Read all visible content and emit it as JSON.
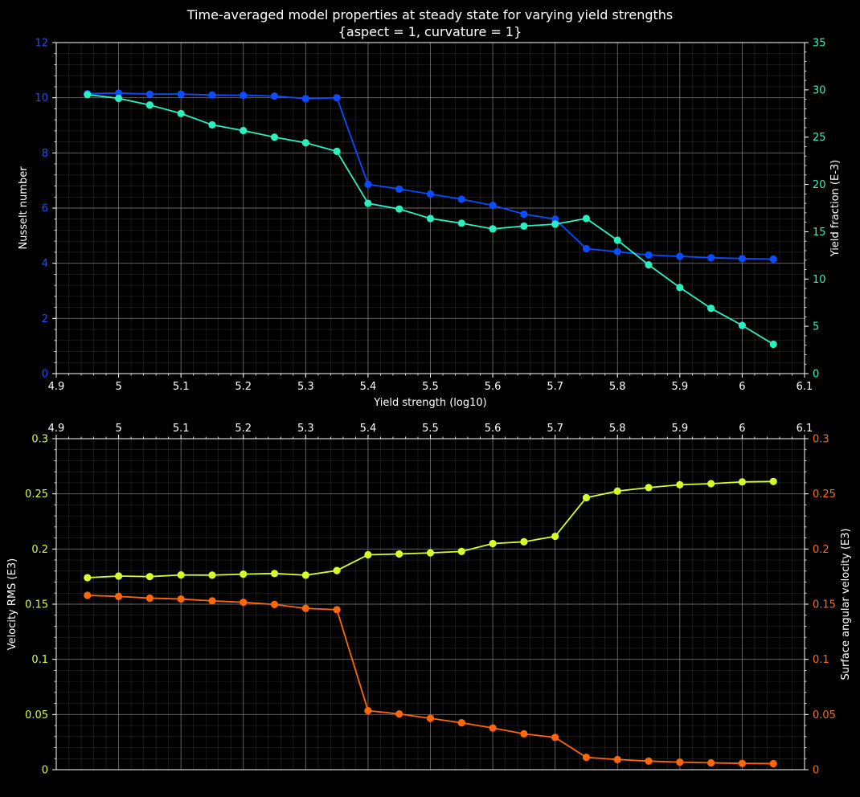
{
  "figure": {
    "title_line1": "Time-averaged model properties at steady state for varying yield strengths",
    "title_line2": "{aspect = 1, curvature = 1}",
    "background": "#000000",
    "grid_major_color": "#8c8c8c",
    "grid_minor_color": "#4a4a4a",
    "text_color": "#ffffff"
  },
  "chart_data": [
    {
      "type": "line",
      "panel": "top",
      "xlabel": "Yield strength (log10)",
      "xlim": [
        4.9,
        6.1
      ],
      "x_ticks": [
        "4.9",
        "5",
        "5.1",
        "5.2",
        "5.3",
        "5.4",
        "5.5",
        "5.6",
        "5.7",
        "5.8",
        "5.9",
        "6",
        "6.1"
      ],
      "x_axis_position": "bottom",
      "grid": true,
      "x": [
        4.95,
        5.0,
        5.05,
        5.1,
        5.15,
        5.2,
        5.25,
        5.3,
        5.35,
        5.4,
        5.45,
        5.5,
        5.55,
        5.6,
        5.65,
        5.7,
        5.75,
        5.8,
        5.85,
        5.9,
        5.95,
        6.0,
        6.05
      ],
      "left_axis": {
        "label": "Nusselt number",
        "ylim": [
          0,
          12
        ],
        "ticks": [
          "0",
          "2",
          "4",
          "6",
          "8",
          "10",
          "12"
        ],
        "color": "#1f4fff"
      },
      "right_axis": {
        "label": "Yield fraction (E-3)",
        "ylim": [
          0,
          35
        ],
        "ticks": [
          "0",
          "5",
          "10",
          "15",
          "20",
          "25",
          "30",
          "35"
        ],
        "color": "#2cf5c0"
      },
      "series": [
        {
          "axis": "left",
          "color": "#0a4cff",
          "values": [
            10.15,
            10.17,
            10.13,
            10.13,
            10.1,
            10.09,
            10.06,
            9.97,
            10.0,
            6.86,
            6.69,
            6.51,
            6.32,
            6.1,
            5.78,
            5.6,
            4.53,
            4.42,
            4.3,
            4.25,
            4.2,
            4.17,
            4.15
          ]
        },
        {
          "axis": "right",
          "color": "#2af0c0",
          "values": [
            29.5,
            29.1,
            28.4,
            27.5,
            26.3,
            25.7,
            25.0,
            24.4,
            23.5,
            18.0,
            17.4,
            16.4,
            15.9,
            15.3,
            15.6,
            15.8,
            16.4,
            14.1,
            11.5,
            9.1,
            6.9,
            5.1,
            3.1
          ]
        }
      ]
    },
    {
      "type": "line",
      "panel": "bottom",
      "xlabel": "",
      "xlim": [
        4.9,
        6.1
      ],
      "x_ticks": [
        "4.9",
        "5",
        "5.1",
        "5.2",
        "5.3",
        "5.4",
        "5.5",
        "5.6",
        "5.7",
        "5.8",
        "5.9",
        "6",
        "6.1"
      ],
      "x_axis_position": "top",
      "grid": true,
      "x": [
        4.95,
        5.0,
        5.05,
        5.1,
        5.15,
        5.2,
        5.25,
        5.3,
        5.35,
        5.4,
        5.45,
        5.5,
        5.55,
        5.6,
        5.65,
        5.7,
        5.75,
        5.8,
        5.85,
        5.9,
        5.95,
        6.0,
        6.05
      ],
      "left_axis": {
        "label": "Velocity RMS (E3)",
        "ylim": [
          0,
          0.3
        ],
        "ticks": [
          "0",
          "0.05",
          "0.1",
          "0.15",
          "0.2",
          "0.25",
          "0.3"
        ],
        "color": "#d8ff30"
      },
      "right_axis": {
        "label": "Surface angular velocity (E3)",
        "ylim": [
          0,
          0.3
        ],
        "ticks": [
          "0",
          "0.05",
          "0.1",
          "0.15",
          "0.2",
          "0.25",
          "0.3"
        ],
        "color": "#ff6a10"
      },
      "series": [
        {
          "axis": "left",
          "color": "#d4ff28",
          "values": [
            0.174,
            0.1755,
            0.175,
            0.1765,
            0.1763,
            0.1772,
            0.1778,
            0.1763,
            0.1805,
            0.1948,
            0.1955,
            0.1965,
            0.1978,
            0.205,
            0.2065,
            0.2115,
            0.2465,
            0.2525,
            0.2557,
            0.2582,
            0.2592,
            0.2608,
            0.2612
          ]
        },
        {
          "axis": "right",
          "color": "#ff660a",
          "values": [
            0.158,
            0.157,
            0.1555,
            0.1547,
            0.153,
            0.1517,
            0.1497,
            0.1462,
            0.145,
            0.0535,
            0.0505,
            0.0465,
            0.0425,
            0.0378,
            0.0325,
            0.0292,
            0.0112,
            0.0092,
            0.0078,
            0.0068,
            0.0062,
            0.0057,
            0.0055
          ]
        }
      ]
    }
  ]
}
